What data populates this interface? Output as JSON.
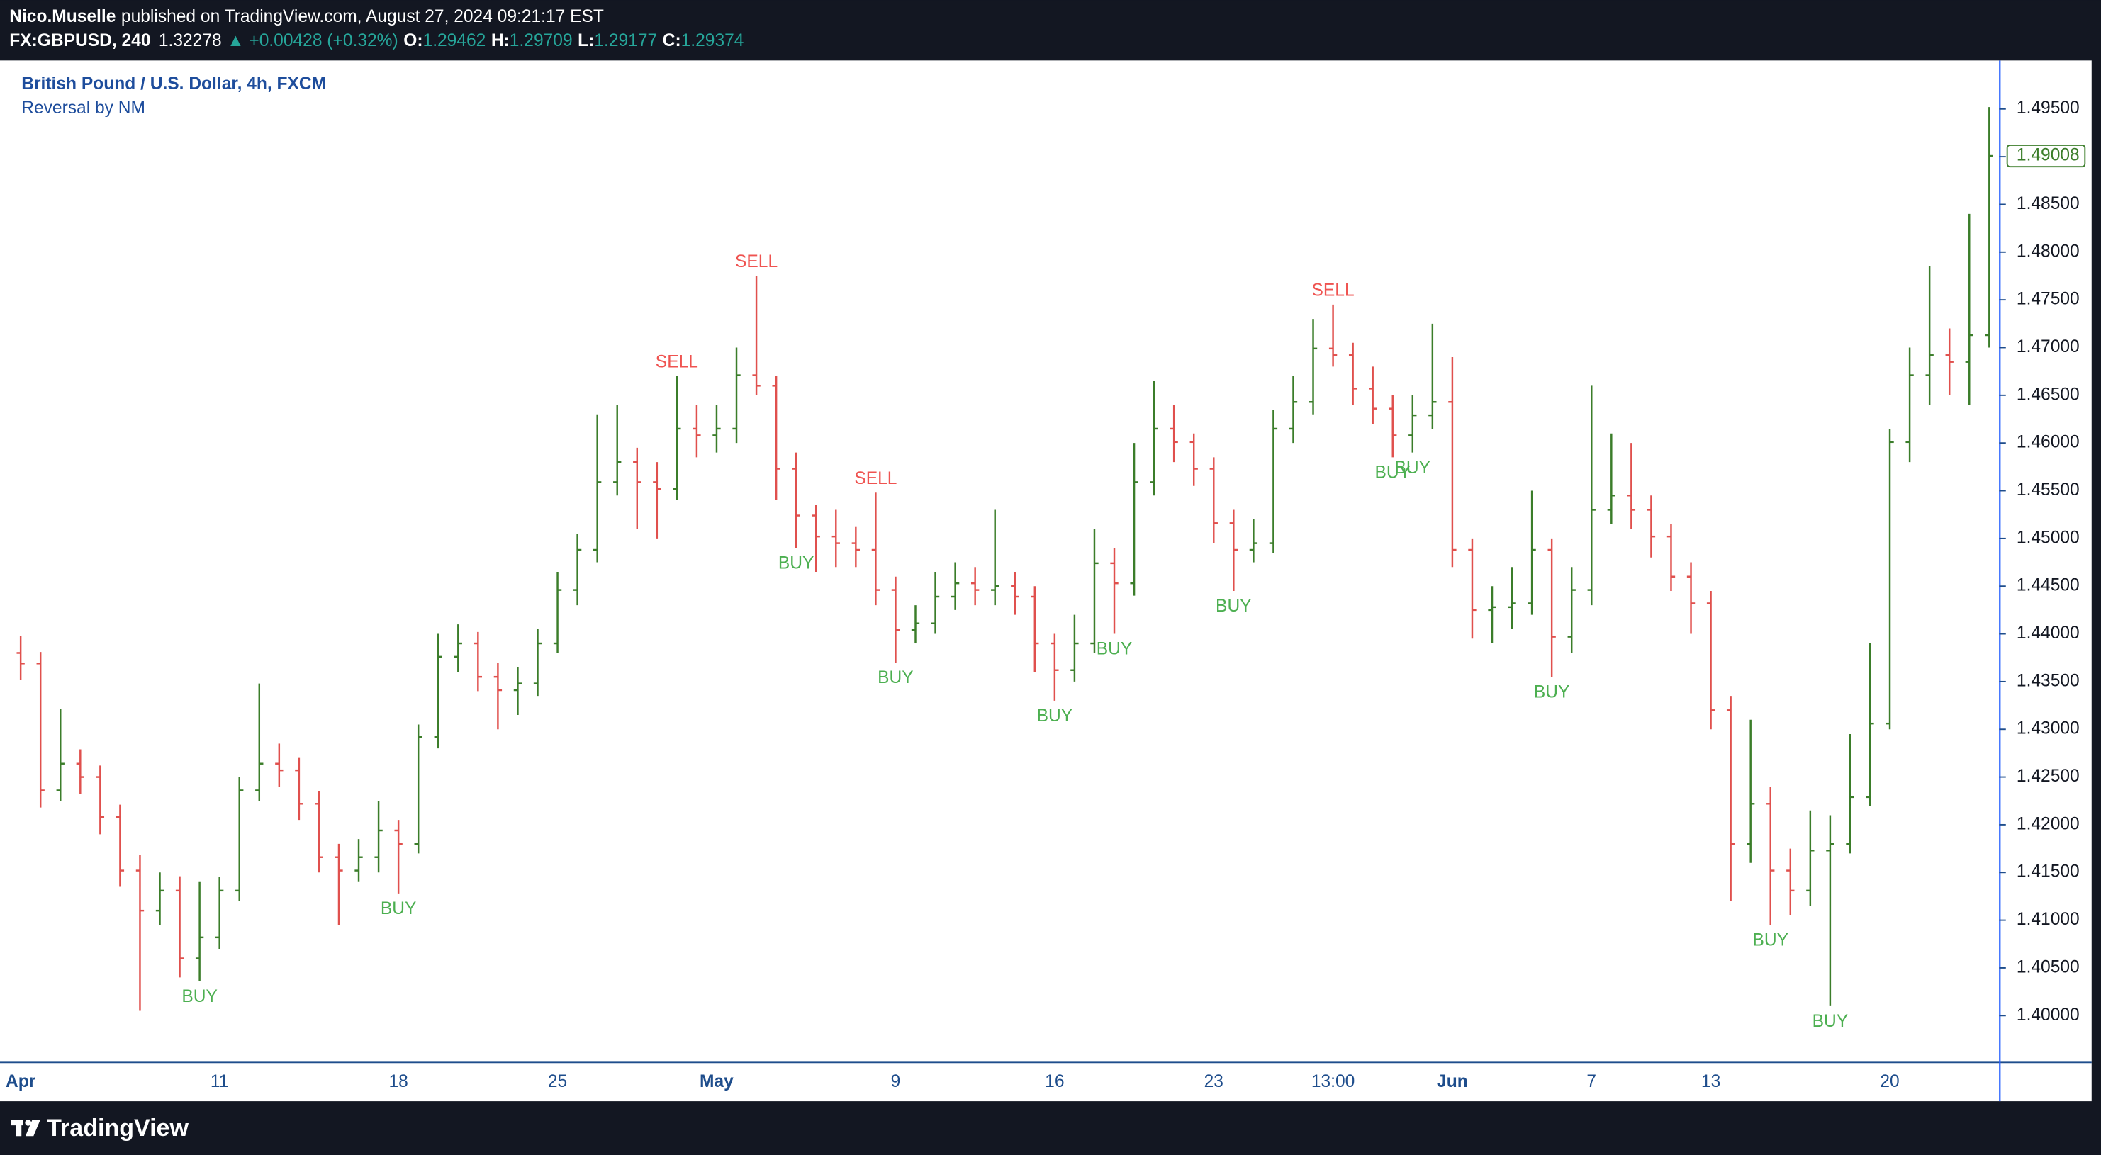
{
  "header": {
    "author": "Nico.Muselle",
    "published": "published on TradingView.com, August 27, 2024 09:21:17 EST",
    "symbol": "FX:GBPUSD, 240",
    "last": "1.32278",
    "change": "▲ +0.00428 (+0.32%)",
    "o_label": "O:",
    "o": "1.29462",
    "h_label": "H:",
    "h": "1.29709",
    "l_label": "L:",
    "l": "1.29177",
    "c_label": "C:",
    "c": "1.29374"
  },
  "footer": {
    "brand": "TradingView"
  },
  "chart_data": {
    "type": "ohlc",
    "title": "British Pound / U.S. Dollar, 4h, FXCM",
    "subtitle": "Reversal by NM",
    "up_color": "#3b7d2a",
    "down_color": "#e0504d",
    "buy_color": "#4caf50",
    "sell_color": "#ef5350",
    "categories": [
      "Apr",
      null,
      null,
      null,
      null,
      null,
      null,
      null,
      null,
      null,
      "11",
      null,
      null,
      null,
      null,
      null,
      null,
      null,
      null,
      "18",
      null,
      null,
      null,
      null,
      null,
      null,
      null,
      "25",
      null,
      null,
      null,
      null,
      null,
      null,
      null,
      "May",
      null,
      null,
      null,
      null,
      null,
      null,
      null,
      null,
      "9",
      null,
      null,
      null,
      null,
      null,
      null,
      null,
      "16",
      null,
      null,
      null,
      null,
      null,
      null,
      null,
      "23",
      null,
      null,
      null,
      null,
      null,
      "13:00",
      null,
      null,
      null,
      null,
      null,
      "Jun",
      null,
      null,
      null,
      null,
      null,
      null,
      "7",
      null,
      null,
      null,
      null,
      null,
      "13",
      null,
      null,
      null,
      null,
      null,
      null,
      null,
      null,
      "20",
      null,
      null,
      null,
      null,
      null
    ],
    "open": [
      1.438,
      1.4369,
      1.4236,
      1.4264,
      1.425,
      1.4208,
      1.4152,
      1.411,
      1.4131,
      1.406,
      1.4082,
      1.4131,
      1.4236,
      1.4264,
      1.4257,
      1.4222,
      1.4166,
      1.4152,
      1.4166,
      1.4194,
      1.418,
      1.4292,
      1.4376,
      1.439,
      1.4355,
      1.4341,
      1.4348,
      1.439,
      1.4446,
      1.4488,
      1.4559,
      1.458,
      1.4559,
      1.4552,
      1.4615,
      1.4608,
      1.4615,
      1.4671,
      1.466,
      1.4573,
      1.4524,
      1.4502,
      1.4495,
      1.4488,
      1.4446,
      1.4404,
      1.4411,
      1.4439,
      1.4453,
      1.4446,
      1.445,
      1.4439,
      1.439,
      1.4362,
      1.439,
      1.4474,
      1.4453,
      1.4559,
      1.4615,
      1.4601,
      1.4573,
      1.4516,
      1.4488,
      1.4495,
      1.4615,
      1.4643,
      1.4699,
      1.4692,
      1.4657,
      1.4636,
      1.4608,
      1.4629,
      1.4643,
      1.4488,
      1.4425,
      1.4428,
      1.4432,
      1.4488,
      1.4397,
      1.4446,
      1.453,
      1.4545,
      1.453,
      1.4502,
      1.446,
      1.4432,
      1.432,
      1.418,
      1.4222,
      1.4152,
      1.4131,
      1.4173,
      1.418,
      1.4229,
      1.4306,
      1.4601,
      1.4671,
      1.4692,
      1.4685,
      1.4713
    ],
    "high": [
      1.4398,
      1.4381,
      1.4321,
      1.4279,
      1.4262,
      1.4221,
      1.4168,
      1.415,
      1.4146,
      1.414,
      1.4145,
      1.425,
      1.4348,
      1.4285,
      1.427,
      1.4235,
      1.418,
      1.4185,
      1.4225,
      1.4205,
      1.4305,
      1.44,
      1.441,
      1.4402,
      1.437,
      1.4365,
      1.4405,
      1.4465,
      1.4505,
      1.463,
      1.464,
      1.4595,
      1.458,
      1.467,
      1.464,
      1.464,
      1.47,
      1.4775,
      1.467,
      1.459,
      1.4535,
      1.453,
      1.4512,
      1.4548,
      1.446,
      1.443,
      1.4465,
      1.4475,
      1.447,
      1.453,
      1.4465,
      1.445,
      1.44,
      1.442,
      1.451,
      1.449,
      1.46,
      1.4665,
      1.464,
      1.461,
      1.4585,
      1.453,
      1.452,
      1.4635,
      1.467,
      1.473,
      1.4745,
      1.4705,
      1.468,
      1.465,
      1.465,
      1.4725,
      1.469,
      1.45,
      1.445,
      1.447,
      1.455,
      1.45,
      1.447,
      1.466,
      1.461,
      1.46,
      1.4545,
      1.4515,
      1.4475,
      1.4445,
      1.4335,
      1.431,
      1.424,
      1.4175,
      1.4215,
      1.421,
      1.4295,
      1.439,
      1.4615,
      1.47,
      1.4785,
      1.472,
      1.484,
      1.4952
    ],
    "low": [
      1.4352,
      1.4218,
      1.4225,
      1.4232,
      1.419,
      1.4135,
      1.4005,
      1.4095,
      1.404,
      1.4036,
      1.407,
      1.412,
      1.4225,
      1.424,
      1.4205,
      1.415,
      1.4095,
      1.414,
      1.415,
      1.4128,
      1.417,
      1.428,
      1.436,
      1.434,
      1.43,
      1.4315,
      1.4335,
      1.438,
      1.443,
      1.4475,
      1.4545,
      1.451,
      1.45,
      1.454,
      1.4585,
      1.459,
      1.46,
      1.465,
      1.454,
      1.449,
      1.4465,
      1.447,
      1.447,
      1.443,
      1.437,
      1.439,
      1.44,
      1.4425,
      1.443,
      1.443,
      1.442,
      1.436,
      1.433,
      1.435,
      1.438,
      1.44,
      1.444,
      1.4545,
      1.458,
      1.4555,
      1.4495,
      1.4445,
      1.4475,
      1.4485,
      1.46,
      1.463,
      1.468,
      1.464,
      1.462,
      1.4585,
      1.459,
      1.4615,
      1.447,
      1.4395,
      1.439,
      1.4405,
      1.442,
      1.4355,
      1.438,
      1.443,
      1.4515,
      1.451,
      1.448,
      1.4445,
      1.44,
      1.43,
      1.412,
      1.416,
      1.4095,
      1.4105,
      1.4115,
      1.401,
      1.417,
      1.422,
      1.43,
      1.458,
      1.464,
      1.465,
      1.464,
      1.47
    ],
    "close": [
      1.4369,
      1.4236,
      1.4264,
      1.425,
      1.4208,
      1.4152,
      1.411,
      1.4131,
      1.406,
      1.4082,
      1.4131,
      1.4236,
      1.4264,
      1.4257,
      1.4222,
      1.4166,
      1.4152,
      1.4166,
      1.4194,
      1.418,
      1.4292,
      1.4376,
      1.439,
      1.4355,
      1.4341,
      1.4348,
      1.439,
      1.4446,
      1.4488,
      1.4559,
      1.458,
      1.4559,
      1.4552,
      1.4615,
      1.4608,
      1.4615,
      1.4671,
      1.466,
      1.4573,
      1.4524,
      1.4502,
      1.4495,
      1.4488,
      1.4446,
      1.4404,
      1.4411,
      1.4439,
      1.4453,
      1.4446,
      1.445,
      1.4439,
      1.439,
      1.4362,
      1.439,
      1.4474,
      1.4453,
      1.4559,
      1.4615,
      1.4601,
      1.4573,
      1.4516,
      1.4488,
      1.4495,
      1.4615,
      1.4643,
      1.4699,
      1.4692,
      1.4657,
      1.4636,
      1.4608,
      1.4629,
      1.4643,
      1.4488,
      1.4425,
      1.4428,
      1.4432,
      1.4488,
      1.4397,
      1.4446,
      1.453,
      1.4545,
      1.453,
      1.4502,
      1.446,
      1.4432,
      1.432,
      1.418,
      1.4222,
      1.4152,
      1.4131,
      1.4173,
      1.418,
      1.4229,
      1.4306,
      1.4601,
      1.4671,
      1.4692,
      1.4685,
      1.4713,
      1.49008
    ],
    "signals": [
      {
        "label": "BUY",
        "index": 9
      },
      {
        "label": "BUY",
        "index": 19
      },
      {
        "label": "SELL",
        "index": 33
      },
      {
        "label": "SELL",
        "index": 37
      },
      {
        "label": "BUY",
        "index": 39
      },
      {
        "label": "SELL",
        "index": 43
      },
      {
        "label": "BUY",
        "index": 44
      },
      {
        "label": "BUY",
        "index": 52
      },
      {
        "label": "BUY",
        "index": 55
      },
      {
        "label": "BUY",
        "index": 61
      },
      {
        "label": "SELL",
        "index": 66
      },
      {
        "label": "BUY",
        "index": 69
      },
      {
        "label": "BUY",
        "index": 70
      },
      {
        "label": "BUY",
        "index": 77
      },
      {
        "label": "BUY",
        "index": 88
      },
      {
        "label": "BUY",
        "index": 91
      }
    ],
    "ylim": [
      1.3951,
      1.4998
    ],
    "yticks": [
      {
        "value": 1.4,
        "label": "1.40000"
      },
      {
        "value": 1.405,
        "label": "1.40500"
      },
      {
        "value": 1.41,
        "label": "1.41000"
      },
      {
        "value": 1.415,
        "label": "1.41500"
      },
      {
        "value": 1.42,
        "label": "1.42000"
      },
      {
        "value": 1.425,
        "label": "1.42500"
      },
      {
        "value": 1.43,
        "label": "1.43000"
      },
      {
        "value": 1.435,
        "label": "1.43500"
      },
      {
        "value": 1.44,
        "label": "1.44000"
      },
      {
        "value": 1.445,
        "label": "1.44500"
      },
      {
        "value": 1.45,
        "label": "1.45000"
      },
      {
        "value": 1.455,
        "label": "1.45500"
      },
      {
        "value": 1.46,
        "label": "1.46000"
      },
      {
        "value": 1.465,
        "label": "1.46500"
      },
      {
        "value": 1.47,
        "label": "1.47000"
      },
      {
        "value": 1.475,
        "label": "1.47500"
      },
      {
        "value": 1.48,
        "label": "1.48000"
      },
      {
        "value": 1.485,
        "label": "1.48500"
      },
      {
        "value": 1.49,
        "label": "1.49000"
      },
      {
        "value": 1.495,
        "label": "1.49500"
      }
    ]
  }
}
